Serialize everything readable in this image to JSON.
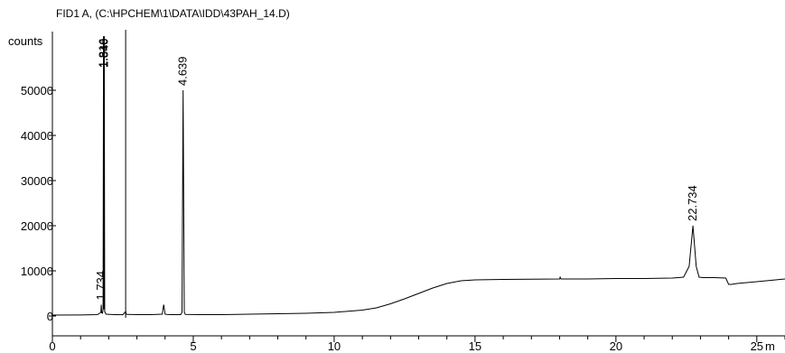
{
  "chart_data": {
    "type": "line",
    "title": "FID1 A,  (C:\\HPCHEM\\1\\DATA\\IDD\\43PAH_14.D)",
    "ylabel": "counts",
    "x_unit": "m",
    "xlim": [
      0,
      26
    ],
    "ylim": [
      -1000,
      60000
    ],
    "x_ticks": [
      {
        "value": 0,
        "label": "0"
      },
      {
        "value": 5,
        "label": "5"
      },
      {
        "value": 10,
        "label": "10"
      },
      {
        "value": 15,
        "label": "15"
      },
      {
        "value": 20,
        "label": "20"
      },
      {
        "value": 25,
        "label": "25"
      }
    ],
    "y_ticks": [
      {
        "value": 0,
        "label": "0"
      },
      {
        "value": 10000,
        "label": "10000"
      },
      {
        "value": 20000,
        "label": "20000"
      },
      {
        "value": 30000,
        "label": "30000"
      },
      {
        "value": 40000,
        "label": "40000"
      },
      {
        "value": 50000,
        "label": "50000"
      }
    ],
    "peak_labels": [
      {
        "x": 1.734,
        "y": 2500,
        "label": "1.734"
      },
      {
        "x": 1.816,
        "y": 62000,
        "label": "1.816"
      },
      {
        "x": 1.84,
        "y": 62000,
        "label": "1.840"
      },
      {
        "x": 4.639,
        "y": 50000,
        "label": "4.639"
      },
      {
        "x": 22.734,
        "y": 20000,
        "label": "22.734"
      }
    ],
    "solvent_marker_x": 2.6,
    "series": [
      {
        "x": [
          0,
          1.0,
          1.6,
          1.72,
          1.734,
          1.75,
          1.78,
          1.8,
          1.816,
          1.828,
          1.84,
          1.855,
          1.9,
          2.2,
          2.5,
          2.6,
          2.62,
          2.65,
          3.0,
          3.5,
          3.9,
          3.95,
          4.0,
          4.05,
          4.2,
          4.55,
          4.6,
          4.639,
          4.68,
          4.72,
          5.2,
          6.0,
          7.0,
          8.0,
          9.0,
          10.0,
          11.0,
          11.5,
          12.0,
          12.5,
          13.0,
          13.5,
          14.0,
          14.5,
          15.0,
          16.0,
          17.0,
          18.0,
          18.02,
          18.05,
          19.0,
          20.0,
          21.0,
          22.0,
          22.4,
          22.6,
          22.734,
          22.85,
          22.95,
          23.1,
          23.5,
          23.9,
          24.0,
          24.1,
          24.3,
          25.0,
          26.0
        ],
        "y": [
          200,
          220,
          300,
          800,
          2500,
          700,
          600,
          1500,
          62000,
          1500,
          62000,
          1000,
          400,
          300,
          280,
          1000,
          400,
          350,
          300,
          300,
          400,
          2500,
          400,
          350,
          300,
          300,
          800,
          50000,
          800,
          350,
          300,
          300,
          400,
          500,
          600,
          800,
          1300,
          1800,
          2700,
          3800,
          5000,
          6200,
          7200,
          7800,
          8000,
          8100,
          8150,
          8200,
          8600,
          8200,
          8200,
          8300,
          8300,
          8400,
          8600,
          11000,
          20000,
          11000,
          8600,
          8500,
          8500,
          8400,
          7000,
          7000,
          7200,
          7600,
          8200
        ]
      }
    ],
    "grid": false
  }
}
